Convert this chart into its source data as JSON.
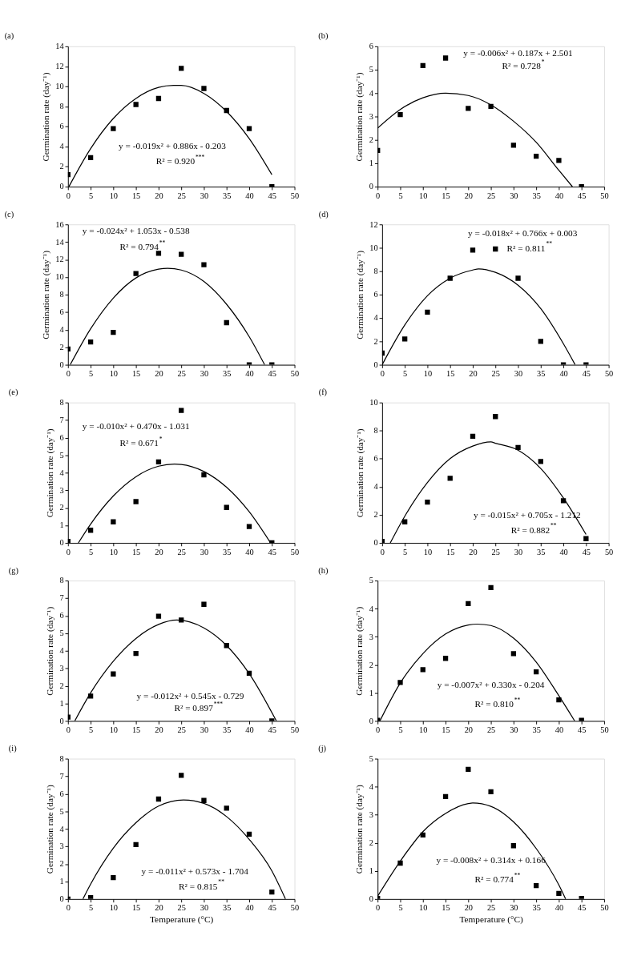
{
  "chart_data": [
    {
      "type": "scatter",
      "title": "(a)",
      "ylabel": "Germination rate (day⁻¹)",
      "x": [
        0,
        5,
        10,
        15,
        20,
        25,
        30,
        35,
        40,
        45
      ],
      "xlim": [
        0,
        50
      ],
      "xticks": [
        0,
        5,
        10,
        15,
        20,
        25,
        30,
        35,
        40,
        45,
        50
      ],
      "ylim": [
        0,
        14
      ],
      "yticks": [
        0,
        2,
        4,
        6,
        8,
        10,
        12,
        14
      ],
      "grid": false,
      "series": [
        {
          "type": "scatter",
          "marker": "square",
          "color": "#000000",
          "values": [
            1.2,
            2.9,
            5.8,
            8.2,
            8.8,
            11.8,
            9.8,
            7.6,
            5.8,
            0
          ]
        },
        {
          "type": "line",
          "line_style": "solid",
          "color": "#000000",
          "x": [
            0.2,
            5,
            10,
            15,
            20,
            23.3,
            25,
            30,
            35,
            40,
            45
          ],
          "values": [
            0,
            3.8,
            6.8,
            8.8,
            9.9,
            10.1,
            10.1,
            9.3,
            7.5,
            4.8,
            1.2
          ]
        }
      ],
      "annotations": [
        "y = -0.019x² + 0.886x - 0.203",
        "R² = 0.920$^{***}$"
      ]
    },
    {
      "type": "scatter",
      "title": "(b)",
      "ylabel": "Germination rate (day⁻¹)",
      "x": [
        0,
        5,
        10,
        15,
        20,
        25,
        30,
        35,
        40,
        45
      ],
      "xlim": [
        0,
        50
      ],
      "xticks": [
        0,
        5,
        10,
        15,
        20,
        25,
        30,
        35,
        40,
        45,
        50
      ],
      "ylim": [
        0,
        6
      ],
      "yticks": [
        0,
        1,
        2,
        3,
        4,
        5,
        6
      ],
      "grid": false,
      "series": [
        {
          "type": "scatter",
          "marker": "square",
          "color": "#000000",
          "values": [
            1.55,
            3.08,
            5.18,
            5.5,
            3.35,
            3.43,
            1.77,
            1.3,
            1.12,
            0
          ]
        },
        {
          "type": "line",
          "line_style": "solid",
          "color": "#000000",
          "x": [
            0,
            5,
            10,
            15,
            20,
            25,
            30,
            35,
            40,
            43
          ],
          "values": [
            2.5,
            3.3,
            3.8,
            4.0,
            3.9,
            3.5,
            2.8,
            1.9,
            0.7,
            0
          ]
        }
      ],
      "annotations": [
        "y = -0.006x² + 0.187x + 2.501",
        "R² = 0.728$^{*}$"
      ]
    },
    {
      "type": "scatter",
      "title": "(c)",
      "ylabel": "Germination rate (day⁻¹)",
      "x": [
        0,
        5,
        10,
        15,
        20,
        25,
        30,
        35,
        40,
        45
      ],
      "xlim": [
        0,
        50
      ],
      "xticks": [
        0,
        5,
        10,
        15,
        20,
        25,
        30,
        35,
        40,
        45,
        50
      ],
      "ylim": [
        0,
        16
      ],
      "yticks": [
        0,
        2,
        4,
        6,
        8,
        10,
        12,
        14,
        16
      ],
      "grid": false,
      "series": [
        {
          "type": "scatter",
          "marker": "square",
          "color": "#000000",
          "values": [
            1.8,
            2.6,
            3.7,
            10.4,
            12.7,
            12.6,
            11.4,
            4.8,
            0,
            0
          ]
        },
        {
          "type": "line",
          "line_style": "solid",
          "color": "#000000",
          "x": [
            0.5,
            5,
            10,
            15,
            20,
            22,
            25,
            30,
            35,
            40,
            43.4
          ],
          "values": [
            0,
            4.1,
            7.6,
            9.9,
            10.9,
            11.0,
            10.8,
            9.5,
            6.9,
            3.2,
            0
          ]
        }
      ],
      "annotations": [
        "y = -0.024x² + 1.053x - 0.538",
        "R² = 0.794$^{**}$"
      ]
    },
    {
      "type": "scatter",
      "title": "(d)",
      "ylabel": "Germination rate (day⁻¹)",
      "x": [
        0,
        5,
        10,
        15,
        20,
        25,
        30,
        35,
        40,
        45
      ],
      "xlim": [
        0,
        50
      ],
      "xticks": [
        0,
        5,
        10,
        15,
        20,
        25,
        30,
        35,
        40,
        45,
        50
      ],
      "ylim": [
        0,
        12
      ],
      "yticks": [
        0,
        2,
        4,
        6,
        8,
        10,
        12
      ],
      "grid": false,
      "series": [
        {
          "type": "scatter",
          "marker": "square",
          "color": "#000000",
          "values": [
            1.0,
            2.2,
            4.5,
            7.4,
            9.8,
            9.9,
            7.4,
            2.0,
            0,
            0
          ]
        },
        {
          "type": "line",
          "line_style": "solid",
          "color": "#000000",
          "x": [
            0,
            5,
            10,
            15,
            20,
            21.3,
            25,
            30,
            35,
            40,
            42.6
          ],
          "values": [
            0,
            3.4,
            5.9,
            7.4,
            8.1,
            8.2,
            7.9,
            6.8,
            4.8,
            1.8,
            0
          ]
        }
      ],
      "annotations": [
        "y = -0.018x² + 0.766x + 0.003",
        "R² = 0.811$^{**}$"
      ]
    },
    {
      "type": "scatter",
      "title": "(e)",
      "ylabel": "Germination rate (day⁻¹)",
      "x": [
        0,
        5,
        10,
        15,
        20,
        25,
        30,
        35,
        40,
        45
      ],
      "xlim": [
        0,
        50
      ],
      "xticks": [
        0,
        5,
        10,
        15,
        20,
        25,
        30,
        35,
        40,
        45,
        50
      ],
      "ylim": [
        0,
        8
      ],
      "yticks": [
        0,
        1,
        2,
        3,
        4,
        5,
        6,
        7,
        8
      ],
      "grid": false,
      "series": [
        {
          "type": "scatter",
          "marker": "square",
          "color": "#000000",
          "values": [
            0.08,
            0.72,
            1.2,
            2.35,
            4.62,
            7.55,
            3.88,
            2.02,
            0.93,
            0
          ]
        },
        {
          "type": "line",
          "line_style": "solid",
          "color": "#000000",
          "x": [
            2.3,
            5,
            10,
            15,
            20,
            23.5,
            25,
            30,
            35,
            40,
            44.7
          ],
          "values": [
            0,
            1.07,
            2.67,
            3.77,
            4.37,
            4.49,
            4.47,
            4.07,
            3.17,
            1.77,
            0
          ]
        }
      ],
      "annotations": [
        "y = -0.010x² + 0.470x - 1.031",
        "R² = 0.671$^{*}$"
      ]
    },
    {
      "type": "scatter",
      "title": "(f)",
      "ylabel": "Germination rate (day⁻¹)",
      "x": [
        0,
        5,
        10,
        15,
        20,
        25,
        30,
        35,
        40,
        45
      ],
      "xlim": [
        0,
        50
      ],
      "xticks": [
        0,
        5,
        10,
        15,
        20,
        25,
        30,
        35,
        40,
        45,
        50
      ],
      "ylim": [
        0,
        10
      ],
      "yticks": [
        0,
        2,
        4,
        6,
        8,
        10
      ],
      "grid": false,
      "series": [
        {
          "type": "scatter",
          "marker": "square",
          "color": "#000000",
          "values": [
            0.1,
            1.5,
            2.9,
            4.6,
            7.6,
            9.0,
            6.8,
            5.8,
            3.0,
            0.3
          ]
        },
        {
          "type": "line",
          "line_style": "solid",
          "color": "#000000",
          "x": [
            1.8,
            5,
            10,
            15,
            20,
            24,
            25,
            30,
            35,
            40,
            45
          ],
          "values": [
            0,
            1.9,
            4.3,
            6.0,
            6.9,
            7.2,
            7.1,
            6.6,
            5.3,
            3.2,
            0.6
          ]
        }
      ],
      "annotations": [
        "y = -0.015x² + 0.705x - 1.212",
        "R² = 0.882$^{**}$"
      ]
    },
    {
      "type": "scatter",
      "title": "(g)",
      "ylabel": "Germination rate (day⁻¹)",
      "x": [
        0,
        5,
        10,
        15,
        20,
        25,
        30,
        35,
        40,
        45
      ],
      "xlim": [
        0,
        50
      ],
      "xticks": [
        0,
        5,
        10,
        15,
        20,
        25,
        30,
        35,
        40,
        45,
        50
      ],
      "ylim": [
        0,
        8
      ],
      "yticks": [
        0,
        1,
        2,
        3,
        4,
        5,
        6,
        7,
        8
      ],
      "grid": false,
      "series": [
        {
          "type": "scatter",
          "marker": "square",
          "color": "#000000",
          "values": [
            0.22,
            1.42,
            2.68,
            3.85,
            5.97,
            5.75,
            6.65,
            4.3,
            2.72,
            0
          ]
        },
        {
          "type": "line",
          "line_style": "solid",
          "color": "#000000",
          "x": [
            1.5,
            5,
            10,
            15,
            20,
            24,
            30,
            35,
            40,
            46
          ],
          "values": [
            0,
            1.6,
            3.4,
            4.7,
            5.5,
            5.75,
            5.3,
            4.3,
            2.7,
            0
          ]
        }
      ],
      "annotations": [
        "y = -0.012x² + 0.545x - 0.729",
        "R² = 0.897$^{***}$"
      ]
    },
    {
      "type": "scatter",
      "title": "(h)",
      "ylabel": "Germination rate (day⁻¹)",
      "x": [
        0,
        5,
        10,
        15,
        20,
        25,
        30,
        35,
        40,
        45
      ],
      "xlim": [
        0,
        50
      ],
      "xticks": [
        0,
        5,
        10,
        15,
        20,
        25,
        30,
        35,
        40,
        45,
        50
      ],
      "ylim": [
        0,
        5
      ],
      "yticks": [
        0,
        1,
        2,
        3,
        4,
        5
      ],
      "grid": false,
      "series": [
        {
          "type": "scatter",
          "marker": "square",
          "color": "#000000",
          "values": [
            0.02,
            1.37,
            1.83,
            2.23,
            4.18,
            4.75,
            2.4,
            1.75,
            0.75,
            0.02
          ]
        },
        {
          "type": "line",
          "line_style": "solid",
          "color": "#000000",
          "x": [
            0.5,
            5,
            10,
            15,
            20,
            22,
            25,
            30,
            35,
            40,
            43.5
          ],
          "values": [
            0,
            1.35,
            2.4,
            3.1,
            3.42,
            3.45,
            3.4,
            2.95,
            2.1,
            0.9,
            0
          ]
        }
      ],
      "annotations": [
        "y = -0.007x² + 0.330x - 0.204",
        "R² = 0.810$^{**}$"
      ]
    },
    {
      "type": "scatter",
      "title": "(i)",
      "xlabel": "Temperature (°C)",
      "ylabel": "Germination rate (day⁻¹)",
      "x": [
        0,
        5,
        10,
        15,
        20,
        25,
        30,
        35,
        40,
        45
      ],
      "xlim": [
        0,
        50
      ],
      "xticks": [
        0,
        5,
        10,
        15,
        20,
        25,
        30,
        35,
        40,
        45,
        50
      ],
      "ylim": [
        0,
        8
      ],
      "yticks": [
        0,
        1,
        2,
        3,
        4,
        5,
        6,
        7,
        8
      ],
      "grid": false,
      "series": [
        {
          "type": "scatter",
          "marker": "square",
          "color": "#000000",
          "values": [
            0,
            0.08,
            1.22,
            3.1,
            5.7,
            7.05,
            5.62,
            5.18,
            3.7,
            0.4
          ]
        },
        {
          "type": "line",
          "line_style": "solid",
          "color": "#000000",
          "x": [
            3.3,
            5,
            10,
            15,
            20,
            25.5,
            30,
            35,
            40,
            45,
            48
          ],
          "values": [
            0,
            0.85,
            2.9,
            4.35,
            5.3,
            5.65,
            5.45,
            4.7,
            3.4,
            1.6,
            0
          ]
        }
      ],
      "annotations": [
        "y = -0.011x² + 0.573x - 1.704",
        "R² = 0.815$^{**}$"
      ]
    },
    {
      "type": "scatter",
      "title": "(j)",
      "xlabel": "Temperature (°C)",
      "ylabel": "Germination rate (day⁻¹)",
      "x": [
        0,
        5,
        10,
        15,
        20,
        25,
        30,
        35,
        40,
        45
      ],
      "xlim": [
        0,
        50
      ],
      "xticks": [
        0,
        5,
        10,
        15,
        20,
        25,
        30,
        35,
        40,
        45,
        50
      ],
      "ylim": [
        0,
        5
      ],
      "yticks": [
        0,
        1,
        2,
        3,
        4,
        5
      ],
      "grid": false,
      "series": [
        {
          "type": "scatter",
          "marker": "square",
          "color": "#000000",
          "values": [
            0.02,
            1.28,
            2.28,
            3.65,
            4.62,
            3.82,
            1.9,
            0.48,
            0.2,
            0.02
          ]
        },
        {
          "type": "line",
          "line_style": "solid",
          "color": "#000000",
          "x": [
            0,
            5,
            10,
            15,
            20,
            21,
            25,
            30,
            35,
            40,
            41.5
          ],
          "values": [
            0.1,
            1.35,
            2.4,
            3.05,
            3.4,
            3.42,
            3.3,
            2.75,
            1.8,
            0.5,
            0
          ]
        }
      ],
      "annotations": [
        "y = -0.008x² + 0.314x + 0.166",
        "R² = 0.774$^{**}$"
      ]
    }
  ]
}
